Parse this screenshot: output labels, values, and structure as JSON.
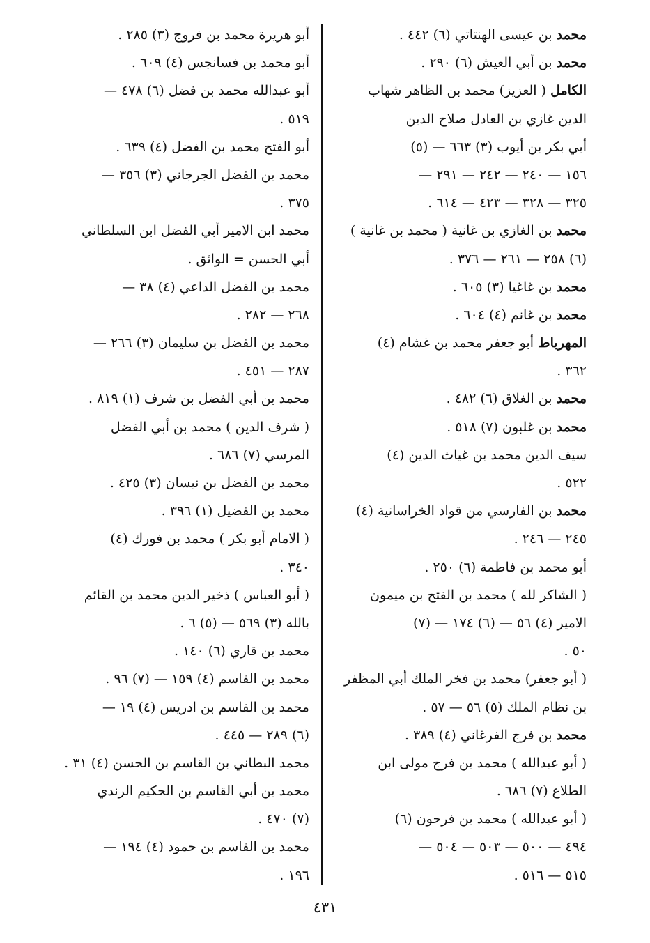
{
  "page_number": "٤٣١",
  "right_column": [
    {
      "b": "محمد",
      "t": " بن عيسى الهنتاتي (٦) ٤٤٢ ."
    },
    {
      "b": "محمد",
      "t": " بن أبي العيش (٦) ٢٩٠ ."
    },
    {
      "b": "الكامل",
      "t": " ( العزيز) محمد بن الظاهر شهاب"
    },
    {
      "b": "",
      "t": "الدين غازي بن العادل صلاح الدين"
    },
    {
      "b": "",
      "t": "أبي بكر بن أيوب (٣) ٦٦٣ — (٥)"
    },
    {
      "b": "",
      "t": "١٥٦ — ٢٤٠ — ٢٤٢ — ٢٩١ —"
    },
    {
      "b": "",
      "t": "٣٢٥ — ٣٢٨ — ٤٢٣ — ٦١٤ ."
    },
    {
      "b": "محمد",
      "t": " بن الغازي بن غانية ( محمد بن غانية )"
    },
    {
      "b": "",
      "t": "(٦) ٢٥٨ — ٢٦١ — ٣٧٦ ."
    },
    {
      "b": "محمد",
      "t": " بن غاغيا (٣) ٦٠٥ ."
    },
    {
      "b": "محمد",
      "t": " بن غانم (٤) ٦٠٤ ."
    },
    {
      "b": "المهرباط",
      "t": " أبو جعفر محمد بن غشام (٤)"
    },
    {
      "b": "",
      "t": "٣٦٢ ."
    },
    {
      "b": "محمد",
      "t": " بن الغلاق (٦) ٤٨٢ ."
    },
    {
      "b": "محمد",
      "t": " بن غلبون (٧) ٥١٨ ."
    },
    {
      "b": "",
      "t": "سيف الدين محمد بن غياث الدين (٤)"
    },
    {
      "b": "",
      "t": "٥٢٢ ."
    },
    {
      "b": "محمد",
      "t": " بن الفارسي من قواد الخراسانية (٤)"
    },
    {
      "b": "",
      "t": "٢٤٥ — ٢٤٦ ."
    },
    {
      "b": "",
      "t": "أبو محمد بن فاطمة (٦) ٢٥٠ ."
    },
    {
      "b": "",
      "t": "( الشاكر لله ) محمد بن الفتح بن ميمون"
    },
    {
      "b": "",
      "t": "الامير (٤) ٥٦ — (٦) ١٧٤ — (٧)"
    },
    {
      "b": "",
      "t": "٥٠ ."
    },
    {
      "b": "",
      "t": "( أبو جعفر) محمد بن فخر الملك أبي المظفر"
    },
    {
      "b": "",
      "t": "بن نظام الملك (٥) ٥٦ — ٥٧ ."
    },
    {
      "b": "محمد",
      "t": " بن فرج الفرغاني (٤) ٣٨٩ ."
    },
    {
      "b": "",
      "t": "( أبو عبدالله ) محمد بن فرج مولى ابن"
    },
    {
      "b": "",
      "t": "الطلاع (٧) ٦٨٦ ."
    },
    {
      "b": "",
      "t": "( أبو عبدالله ) محمد بن فرحون (٦)"
    },
    {
      "b": "",
      "t": "٤٩٤ — ٥٠٠ — ٥٠٣ — ٥٠٤ —"
    },
    {
      "b": "",
      "t": "٥١٥ — ٥١٦ ."
    }
  ],
  "left_column": [
    {
      "b": "",
      "t": "أبو هريرة محمد بن فروج (٣) ٢٨٥ ."
    },
    {
      "b": "",
      "t": "أبو محمد بن فسانجس (٤) ٦٠٩ ."
    },
    {
      "b": "",
      "t": "أبو عبدالله محمد بن فضل (٦) ٤٧٨ —"
    },
    {
      "b": "",
      "t": "٥١٩ ."
    },
    {
      "b": "",
      "t": "أبو الفتح محمد بن الفضل (٤) ٦٣٩ ."
    },
    {
      "b": "",
      "t": "محمد بن الفضل الجرجاني (٣) ٣٥٦ —"
    },
    {
      "b": "",
      "t": "٣٧٥ ."
    },
    {
      "b": "",
      "t": "محمد ابن الامير أبي الفضل ابن السلطاني"
    },
    {
      "b": "",
      "t": "أبي الحسن = الواثق ."
    },
    {
      "b": "",
      "t": "محمد بن الفضل الداعي (٤) ٣٨ —"
    },
    {
      "b": "",
      "t": "٢٦٨ — ٢٨٢ ."
    },
    {
      "b": "",
      "t": "محمد بن الفضل بن سليمان (٣) ٢٦٦ —"
    },
    {
      "b": "",
      "t": "٢٨٧ — ٤٥١ ."
    },
    {
      "b": "",
      "t": "محمد بن أبي الفضل بن شرف (١) ٨١٩ ."
    },
    {
      "b": "",
      "t": "( شرف الدين ) محمد بن أبي الفضل"
    },
    {
      "b": "",
      "t": "المرسي (٧) ٦٨٦ ."
    },
    {
      "b": "",
      "t": "محمد بن الفضل بن نيسان (٣) ٤٢٥ ."
    },
    {
      "b": "",
      "t": "محمد بن الفضيل (١) ٣٩٦ ."
    },
    {
      "b": "",
      "t": "( الامام أبو بكر ) محمد بن فورك (٤)"
    },
    {
      "b": "",
      "t": "٣٤٠ ."
    },
    {
      "b": "",
      "t": "( أبو العباس ) ذخير الدين محمد بن القائم"
    },
    {
      "b": "",
      "t": "بالله (٣) ٥٦٩ — (٥) ٦ ."
    },
    {
      "b": "",
      "t": "محمد بن قاري (٦) ١٤٠ ."
    },
    {
      "b": "",
      "t": "محمد بن القاسم (٤) ١٥٩ — (٧) ٩٦ ."
    },
    {
      "b": "",
      "t": "محمد بن القاسم بن ادريس (٤) ١٩ —"
    },
    {
      "b": "",
      "t": "(٦) ٢٨٩ — ٤٤٥ ."
    },
    {
      "b": "",
      "t": "محمد البطاني بن القاسم بن الحسن (٤) ٣١ ."
    },
    {
      "b": "",
      "t": "محمد بن أبي القاسم بن الحكيم الرندي"
    },
    {
      "b": "",
      "t": "(٧) ٤٧٠ ."
    },
    {
      "b": "",
      "t": "محمد بن القاسم بن حمود (٤) ١٩٤ —"
    },
    {
      "b": "",
      "t": "١٩٦ ."
    }
  ]
}
